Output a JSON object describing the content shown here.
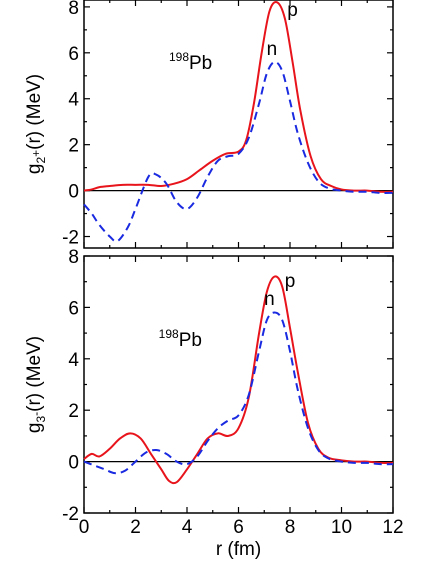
{
  "chart_data": [
    {
      "type": "line",
      "panel": "top",
      "nucleus": {
        "mass": "198",
        "symbol": "Pb"
      },
      "ylabel": {
        "main": "g",
        "sub": "2",
        "sup": "+",
        "rest": "(r) (MeV)"
      },
      "xlabel": "",
      "xlim": [
        0,
        12
      ],
      "ylim": [
        -2.5,
        8.3
      ],
      "yticks": [
        8,
        6,
        4,
        2,
        0,
        -2
      ],
      "ytick_labels": [
        "8",
        "6",
        "4",
        "2",
        "0",
        "-2"
      ],
      "xticks": [
        0,
        2,
        4,
        6,
        8,
        10,
        12
      ],
      "series": [
        {
          "name": "p",
          "color": "#e8141c",
          "dash": "solid",
          "x": [
            0,
            0.3,
            0.6,
            1.0,
            1.5,
            2.0,
            2.5,
            3.0,
            3.5,
            4.0,
            4.5,
            5.0,
            5.5,
            6.0,
            6.3,
            6.6,
            6.9,
            7.2,
            7.5,
            7.8,
            8.1,
            8.4,
            8.8,
            9.2,
            9.6,
            10.0,
            10.5,
            11.0,
            11.5,
            12.0
          ],
          "y": [
            0.0,
            0.05,
            0.15,
            0.2,
            0.25,
            0.25,
            0.25,
            0.2,
            0.3,
            0.5,
            0.9,
            1.3,
            1.6,
            1.7,
            2.2,
            3.8,
            6.0,
            7.8,
            8.2,
            7.5,
            5.6,
            3.5,
            1.5,
            0.5,
            0.2,
            0.05,
            0.0,
            0.0,
            -0.05,
            -0.05
          ]
        },
        {
          "name": "n",
          "color": "#1a2ae0",
          "dash": "dashed",
          "x": [
            0,
            0.3,
            0.6,
            1.0,
            1.3,
            1.7,
            2.0,
            2.5,
            2.8,
            3.2,
            3.6,
            4.0,
            4.4,
            4.8,
            5.2,
            5.6,
            6.0,
            6.4,
            6.8,
            7.1,
            7.4,
            7.7,
            8.0,
            8.3,
            8.7,
            9.1,
            9.5,
            10.0,
            10.5,
            11.0,
            11.5,
            12.0
          ],
          "y": [
            -0.6,
            -1.0,
            -1.5,
            -2.0,
            -2.2,
            -1.6,
            -0.8,
            0.6,
            0.7,
            0.3,
            -0.5,
            -0.8,
            -0.3,
            0.6,
            1.3,
            1.5,
            1.6,
            2.3,
            3.8,
            5.1,
            5.6,
            5.2,
            3.9,
            2.5,
            1.2,
            0.4,
            0.1,
            0.0,
            -0.05,
            -0.05,
            -0.1,
            -0.1
          ]
        }
      ],
      "curve_labels": [
        {
          "text": "p",
          "x": 8.1,
          "y": 7.6
        },
        {
          "text": "n",
          "x": 7.3,
          "y": 5.9
        }
      ],
      "nucleus_position": {
        "x": 3.3,
        "y": 5.3
      }
    },
    {
      "type": "line",
      "panel": "bottom",
      "nucleus": {
        "mass": "198",
        "symbol": "Pb"
      },
      "ylabel": {
        "main": "g",
        "sub": "3",
        "sup": "-",
        "rest": "(r) (MeV)"
      },
      "xlabel": "r (fm)",
      "xlim": [
        0,
        12
      ],
      "ylim": [
        -2.0,
        8.0
      ],
      "yticks": [
        8,
        6,
        4,
        2,
        0,
        -2
      ],
      "ytick_labels": [
        "8",
        "6",
        "4",
        "2",
        "0",
        "-2"
      ],
      "xticks": [
        0,
        2,
        4,
        6,
        8,
        10,
        12
      ],
      "xtick_labels": [
        "0",
        "2",
        "4",
        "6",
        "8",
        "10",
        "12"
      ],
      "series": [
        {
          "name": "p",
          "color": "#e8141c",
          "dash": "solid",
          "x": [
            0,
            0.3,
            0.6,
            1.0,
            1.4,
            1.8,
            2.2,
            2.6,
            3.0,
            3.3,
            3.6,
            4.0,
            4.4,
            4.8,
            5.2,
            5.6,
            6.0,
            6.4,
            6.8,
            7.1,
            7.4,
            7.7,
            8.0,
            8.3,
            8.7,
            9.1,
            9.5,
            10.0,
            10.5,
            11.0,
            11.5,
            12.0
          ],
          "y": [
            0.1,
            0.3,
            0.2,
            0.5,
            0.9,
            1.1,
            0.9,
            0.3,
            -0.3,
            -0.75,
            -0.8,
            -0.3,
            0.3,
            0.9,
            1.1,
            1.0,
            1.3,
            2.5,
            5.0,
            6.6,
            7.2,
            6.8,
            5.2,
            3.5,
            1.5,
            0.5,
            0.15,
            0.05,
            0.0,
            0.0,
            -0.05,
            -0.05
          ]
        },
        {
          "name": "n",
          "color": "#1a2ae0",
          "dash": "dashed",
          "x": [
            0,
            0.4,
            0.8,
            1.2,
            1.6,
            2.0,
            2.4,
            2.8,
            3.2,
            3.6,
            4.0,
            4.4,
            4.8,
            5.2,
            5.6,
            6.0,
            6.4,
            6.8,
            7.1,
            7.4,
            7.7,
            8.0,
            8.3,
            8.7,
            9.1,
            9.5,
            10.0,
            10.5,
            11.0,
            11.5,
            12.0
          ],
          "y": [
            0.0,
            -0.15,
            -0.3,
            -0.45,
            -0.35,
            0.0,
            0.35,
            0.45,
            0.3,
            0.0,
            -0.1,
            0.2,
            0.8,
            1.3,
            1.6,
            1.8,
            2.6,
            4.3,
            5.5,
            5.8,
            5.5,
            4.3,
            2.8,
            1.3,
            0.45,
            0.12,
            0.0,
            -0.05,
            -0.05,
            -0.1,
            -0.1
          ]
        }
      ],
      "curve_labels": [
        {
          "text": "p",
          "x": 8.0,
          "y": 6.8
        },
        {
          "text": "n",
          "x": 7.2,
          "y": 6.1
        }
      ],
      "nucleus_position": {
        "x": 2.9,
        "y": 4.5
      }
    }
  ]
}
